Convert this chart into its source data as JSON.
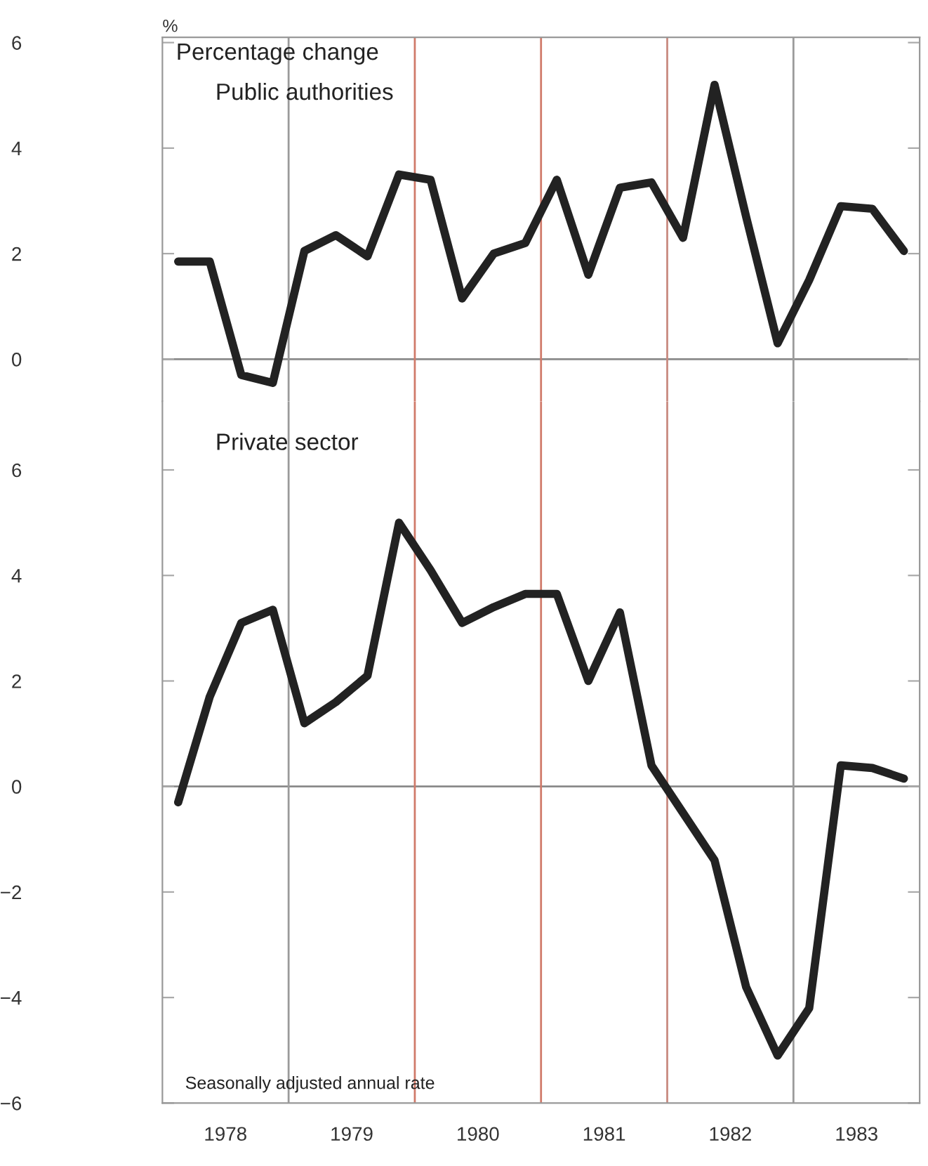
{
  "chart_data": [
    {
      "type": "line",
      "ylabel": "%",
      "annotations": [
        "Percentage change"
      ],
      "x": [
        1978.125,
        1978.375,
        1978.625,
        1978.875,
        1979.125,
        1979.375,
        1979.625,
        1979.875,
        1980.125,
        1980.375,
        1980.625,
        1980.875,
        1981.125,
        1981.375,
        1981.625,
        1981.875,
        1982.125,
        1982.375,
        1982.625,
        1982.875,
        1983.125,
        1983.375,
        1983.625,
        1983.875
      ],
      "series": [
        {
          "name": "Public authorities",
          "color": "#222222",
          "values": [
            1.85,
            1.85,
            -0.3,
            -0.45,
            2.05,
            2.35,
            1.95,
            3.5,
            3.4,
            1.15,
            2.0,
            2.2,
            3.4,
            1.6,
            3.25,
            3.35,
            2.3,
            5.2,
            2.7,
            0.3,
            1.5,
            2.9,
            2.85,
            2.05
          ]
        }
      ],
      "xlim": [
        1978,
        1984
      ],
      "ylim": [
        -0.8,
        6.1
      ],
      "yticks": [
        0,
        2,
        4,
        6
      ],
      "tick_labels": "y",
      "ref_lines": [
        {
          "axis": "y",
          "value": 0,
          "color": "#8a8a8a"
        },
        {
          "axis": "x",
          "value": 1979,
          "color": "#9a9a9a"
        },
        {
          "axis": "x",
          "value": 1980,
          "color": "#d07a6a"
        },
        {
          "axis": "x",
          "value": 1981,
          "color": "#d07a6a"
        },
        {
          "axis": "x",
          "value": 1982,
          "color": "#c88a80"
        },
        {
          "axis": "x",
          "value": 1983,
          "color": "#9a9a9a"
        }
      ],
      "grid": false,
      "legend": false,
      "marker": "none",
      "line_style": "solid"
    },
    {
      "type": "line",
      "annotations": [
        "Seasonally adjusted annual rate"
      ],
      "x": [
        1978.125,
        1978.375,
        1978.625,
        1978.875,
        1979.125,
        1979.375,
        1979.625,
        1979.875,
        1980.125,
        1980.375,
        1980.625,
        1980.875,
        1981.125,
        1981.375,
        1981.625,
        1981.875,
        1982.125,
        1982.375,
        1982.625,
        1982.875,
        1983.125,
        1983.375,
        1983.625,
        1983.875
      ],
      "series": [
        {
          "name": "Private sector",
          "color": "#222222",
          "values": [
            -0.3,
            1.7,
            3.1,
            3.35,
            1.2,
            1.6,
            2.1,
            5.0,
            4.1,
            3.1,
            3.4,
            3.65,
            3.65,
            2.0,
            3.3,
            0.4,
            -0.5,
            -1.4,
            -3.8,
            -5.1,
            -4.2,
            0.4,
            0.35,
            0.15
          ]
        }
      ],
      "xlim": [
        1978,
        1984
      ],
      "ylim": [
        -6,
        7.3
      ],
      "yticks": [
        -6,
        -4,
        -2,
        0,
        2,
        4,
        6
      ],
      "xticks": [
        {
          "value": 1978.5,
          "label": "1978"
        },
        {
          "value": 1979.5,
          "label": "1979"
        },
        {
          "value": 1980.5,
          "label": "1980"
        },
        {
          "value": 1981.5,
          "label": "1981"
        },
        {
          "value": 1982.5,
          "label": "1982"
        },
        {
          "value": 1983.5,
          "label": "1983"
        }
      ],
      "ref_lines": [
        {
          "axis": "y",
          "value": 0,
          "color": "#8a8a8a"
        },
        {
          "axis": "x",
          "value": 1979,
          "color": "#9a9a9a"
        },
        {
          "axis": "x",
          "value": 1980,
          "color": "#d07a6a"
        },
        {
          "axis": "x",
          "value": 1981,
          "color": "#d07a6a"
        },
        {
          "axis": "x",
          "value": 1982,
          "color": "#c88a80"
        },
        {
          "axis": "x",
          "value": 1983,
          "color": "#9a9a9a"
        }
      ],
      "grid": false,
      "legend": false,
      "marker": "none",
      "line_style": "solid"
    }
  ]
}
